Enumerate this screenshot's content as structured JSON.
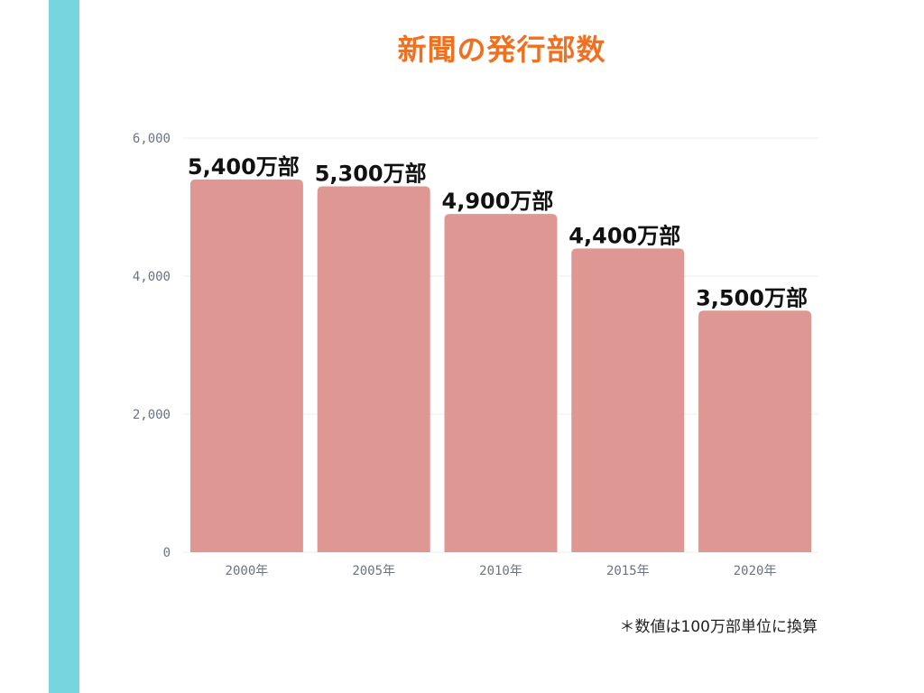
{
  "title": "新聞の発行部数",
  "footnote": "＊数値は100万部単位に換算",
  "colors": {
    "stripe": "#77D5DF",
    "title": "#F07020",
    "bar": "#DF9794",
    "grid": "#EEEEEE"
  },
  "chart_data": {
    "type": "bar",
    "title": "新聞の発行部数",
    "categories": [
      "2000年",
      "2005年",
      "2010年",
      "2015年",
      "2020年"
    ],
    "values": [
      5400,
      5300,
      4900,
      4400,
      3500
    ],
    "data_labels": [
      "5,400万部",
      "5,300万部",
      "4,900万部",
      "4,400万部",
      "3,500万部"
    ],
    "ylim": [
      0,
      6000
    ],
    "y_ticks": [
      0,
      2000,
      4000,
      6000
    ],
    "y_tick_labels": [
      "0",
      "2,000",
      "4,000",
      "6,000"
    ],
    "xlabel": "",
    "ylabel": "",
    "grid": true,
    "legend": "none"
  }
}
